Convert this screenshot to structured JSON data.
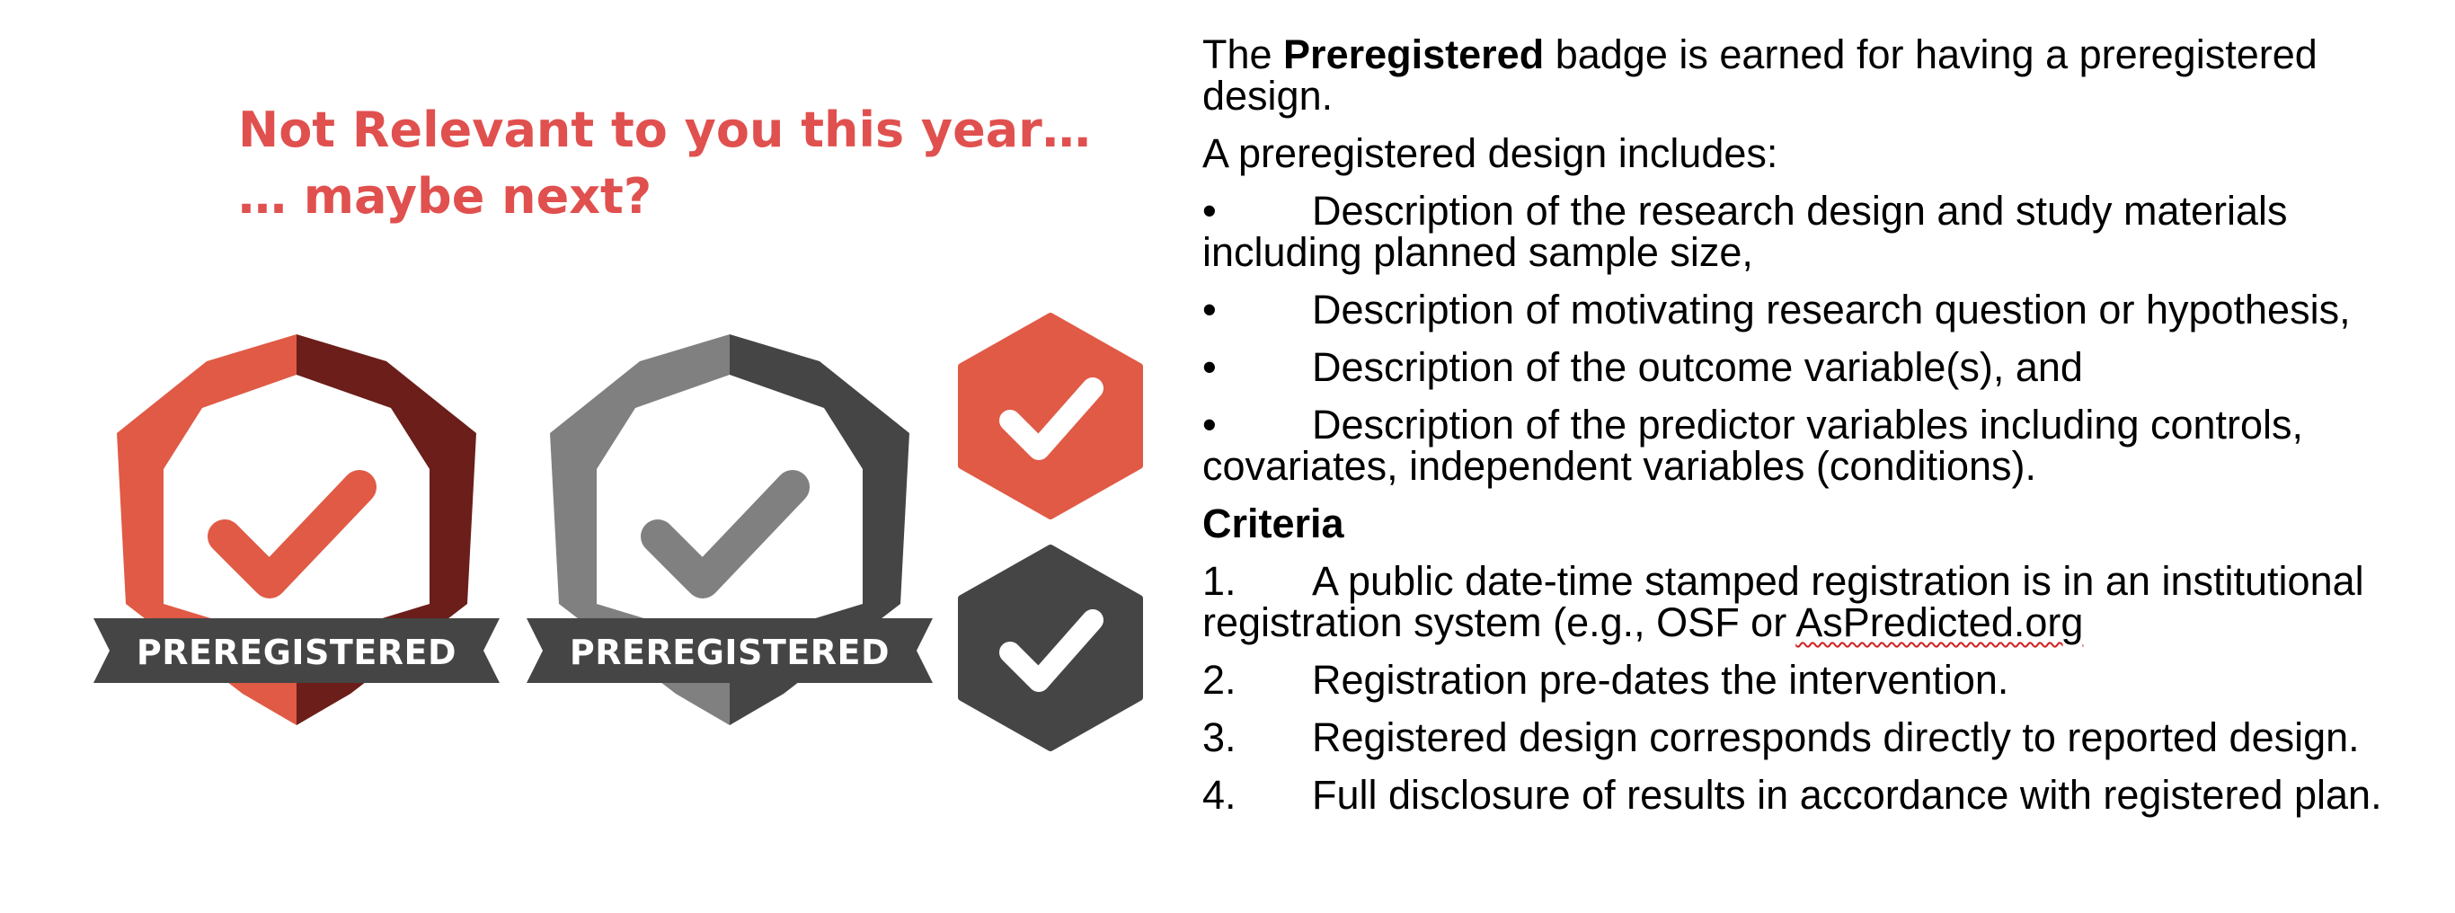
{
  "headline": {
    "line1": "Not Relevant to you this year…",
    "line2": "… maybe next?"
  },
  "badges": {
    "label": "PREREGISTERED",
    "colors": {
      "orange": "#e05a45",
      "dark_red": "#6b1e1a",
      "gray_light": "#808080",
      "gray_dark": "#454545",
      "ribbon": "#454545",
      "white": "#ffffff"
    }
  },
  "description": {
    "intro_prefix": "The ",
    "intro_bold": "Preregistered",
    "intro_suffix": " badge is earned for having a preregistered design.",
    "includes_label": "A preregistered design includes:",
    "bullet_symbol": "•",
    "bullets": [
      "Description of the research design and study materials including planned sample size,",
      "Description of motivating research question or hypothesis,",
      "Description of the outcome variable(s), and",
      "Description of the predictor variables including controls, covariates, independent variables (conditions)."
    ]
  },
  "criteria": {
    "heading": "Criteria",
    "items": [
      {
        "num": "1.",
        "text": "A public date-time stamped registration is in an institutional registration system (e.g., OSF or ",
        "link": "AsPredicted.org"
      },
      {
        "num": "2.",
        "text": "Registration pre-dates the intervention."
      },
      {
        "num": "3.",
        "text": "Registered design corresponds directly to reported design."
      },
      {
        "num": "4.",
        "text": "Full disclosure of results in accordance with registered plan."
      }
    ]
  }
}
